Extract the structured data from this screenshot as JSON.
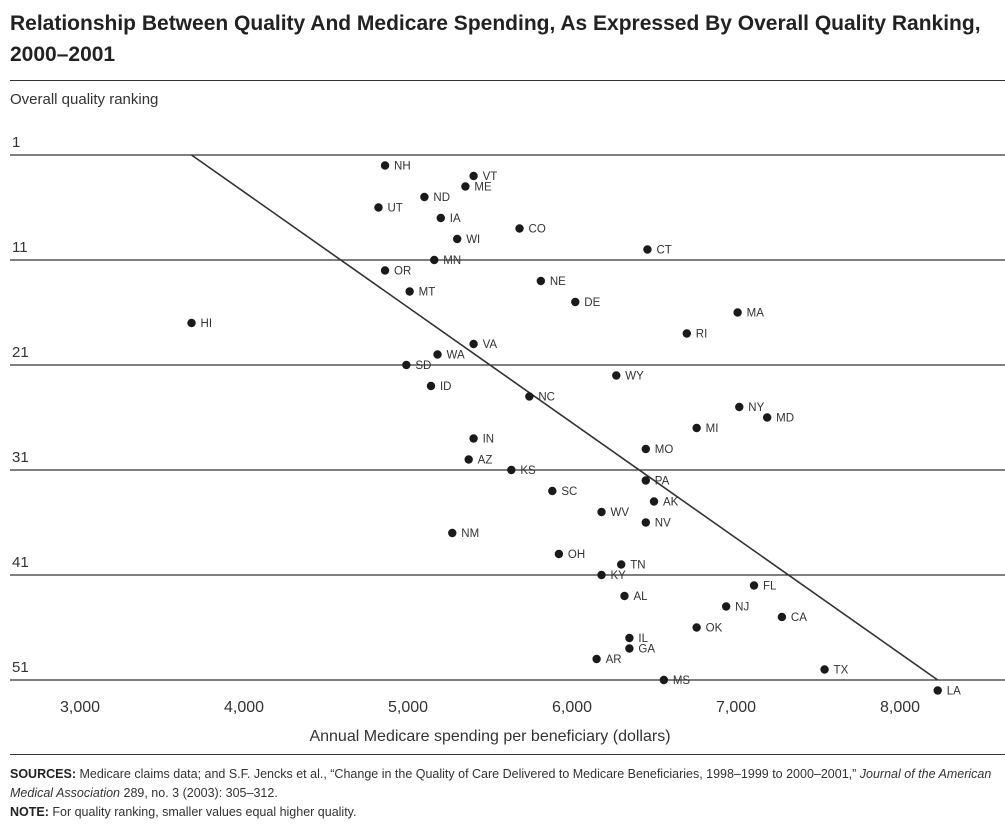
{
  "title": "Relationship Between Quality And Medicare Spending, As Expressed By Overall Quality Ranking, 2000–2001",
  "footer": {
    "sources_label": "SOURCES:",
    "sources_pre": "Medicare claims data; and S.F. Jencks et al., “Change in the Quality of Care Delivered to Medicare Beneficiaries, 1998–1999 to 2000–2001,”",
    "sources_journal": "Journal of the American Medical Association",
    "sources_post": "289, no. 3 (2003): 305–312.",
    "note_label": "NOTE:",
    "note_text": "For quality ranking, smaller values equal higher quality."
  },
  "chart_data": {
    "type": "scatter",
    "title": "Relationship Between Quality And Medicare Spending, As Expressed By Overall Quality Ranking, 2000–2001",
    "xlabel": "Annual Medicare spending per beneficiary (dollars)",
    "ylabel": "Overall quality ranking",
    "xlim": [
      2650,
      8600
    ],
    "ylim": [
      1,
      51
    ],
    "y_inverted": true,
    "x_ticks": [
      3000,
      4000,
      5000,
      6000,
      7000,
      8000
    ],
    "x_tick_labels": [
      "3,000",
      "4,000",
      "5,000",
      "6,000",
      "7,000",
      "8,000"
    ],
    "y_ticks": [
      1,
      11,
      21,
      31,
      41,
      51
    ],
    "y_tick_labels": [
      "1",
      "11",
      "21",
      "31",
      "41",
      "51"
    ],
    "grid": "horizontal",
    "trendline": {
      "from": [
        3680,
        1
      ],
      "to": [
        8230,
        51
      ]
    },
    "series": [
      {
        "points": [
          {
            "label": "NH",
            "x": 4860,
            "y": 2
          },
          {
            "label": "VT",
            "x": 5400,
            "y": 3
          },
          {
            "label": "ME",
            "x": 5350,
            "y": 4
          },
          {
            "label": "ND",
            "x": 5100,
            "y": 5
          },
          {
            "label": "UT",
            "x": 4820,
            "y": 6
          },
          {
            "label": "IA",
            "x": 5200,
            "y": 7
          },
          {
            "label": "CO",
            "x": 5680,
            "y": 8
          },
          {
            "label": "WI",
            "x": 5300,
            "y": 9
          },
          {
            "label": "CT",
            "x": 6460,
            "y": 10
          },
          {
            "label": "MN",
            "x": 5160,
            "y": 11
          },
          {
            "label": "OR",
            "x": 4860,
            "y": 12
          },
          {
            "label": "NE",
            "x": 5810,
            "y": 13
          },
          {
            "label": "MT",
            "x": 5010,
            "y": 14
          },
          {
            "label": "DE",
            "x": 6020,
            "y": 15
          },
          {
            "label": "MA",
            "x": 7010,
            "y": 16
          },
          {
            "label": "HI",
            "x": 3680,
            "y": 17
          },
          {
            "label": "RI",
            "x": 6700,
            "y": 18
          },
          {
            "label": "VA",
            "x": 5400,
            "y": 19
          },
          {
            "label": "WA",
            "x": 5180,
            "y": 20
          },
          {
            "label": "SD",
            "x": 4990,
            "y": 21
          },
          {
            "label": "WY",
            "x": 6270,
            "y": 22
          },
          {
            "label": "ID",
            "x": 5140,
            "y": 23
          },
          {
            "label": "NC",
            "x": 5740,
            "y": 24
          },
          {
            "label": "NY",
            "x": 7020,
            "y": 25
          },
          {
            "label": "MD",
            "x": 7190,
            "y": 26
          },
          {
            "label": "MI",
            "x": 6760,
            "y": 27
          },
          {
            "label": "IN",
            "x": 5400,
            "y": 28
          },
          {
            "label": "MO",
            "x": 6450,
            "y": 29
          },
          {
            "label": "AZ",
            "x": 5370,
            "y": 30
          },
          {
            "label": "KS",
            "x": 5630,
            "y": 31
          },
          {
            "label": "PA",
            "x": 6450,
            "y": 32
          },
          {
            "label": "SC",
            "x": 5880,
            "y": 33
          },
          {
            "label": "AK",
            "x": 6500,
            "y": 34
          },
          {
            "label": "WV",
            "x": 6180,
            "y": 35
          },
          {
            "label": "NV",
            "x": 6450,
            "y": 36
          },
          {
            "label": "NM",
            "x": 5270,
            "y": 37
          },
          {
            "label": "OH",
            "x": 5920,
            "y": 39
          },
          {
            "label": "TN",
            "x": 6300,
            "y": 40
          },
          {
            "label": "KY",
            "x": 6180,
            "y": 41
          },
          {
            "label": "FL",
            "x": 7110,
            "y": 42
          },
          {
            "label": "AL",
            "x": 6320,
            "y": 43
          },
          {
            "label": "NJ",
            "x": 6940,
            "y": 44
          },
          {
            "label": "CA",
            "x": 7280,
            "y": 45
          },
          {
            "label": "OK",
            "x": 6760,
            "y": 46
          },
          {
            "label": "IL",
            "x": 6350,
            "y": 47
          },
          {
            "label": "GA",
            "x": 6350,
            "y": 48
          },
          {
            "label": "AR",
            "x": 6150,
            "y": 49
          },
          {
            "label": "TX",
            "x": 7540,
            "y": 50
          },
          {
            "label": "MS",
            "x": 6560,
            "y": 51
          },
          {
            "label": "LA",
            "x": 8230,
            "y": 52
          }
        ]
      }
    ]
  }
}
